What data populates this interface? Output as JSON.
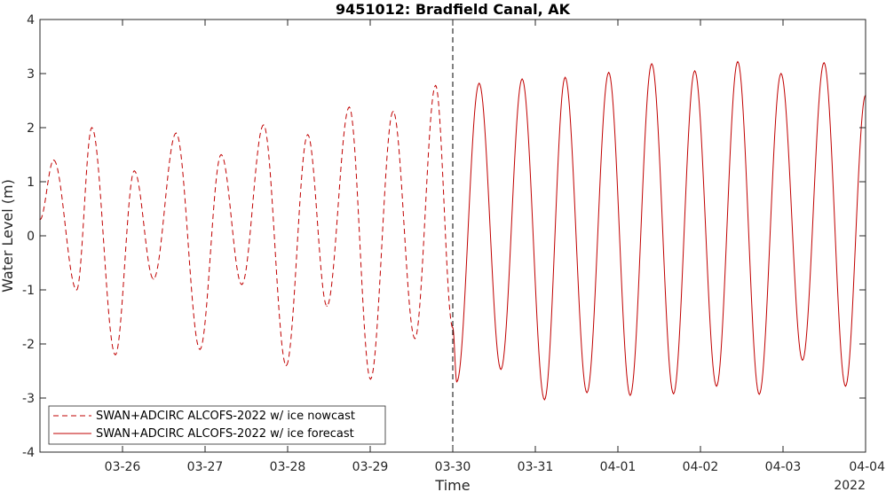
{
  "chart_data": {
    "type": "line",
    "title": "9451012: Bradfield Canal, AK",
    "xlabel": "Time",
    "ylabel": "Water Level (m)",
    "x_unit": "date (2022)",
    "xlim": [
      "2022-03-25 00:00",
      "2022-04-04 00:00"
    ],
    "ylim": [
      -4,
      4
    ],
    "yticks": [
      -4,
      -3,
      -2,
      -1,
      0,
      1,
      2,
      3,
      4
    ],
    "xticks": [
      {
        "date": "2022-03-26",
        "label": "03-26"
      },
      {
        "date": "2022-03-27",
        "label": "03-27"
      },
      {
        "date": "2022-03-28",
        "label": "03-28"
      },
      {
        "date": "2022-03-29",
        "label": "03-29"
      },
      {
        "date": "2022-03-30",
        "label": "03-30"
      },
      {
        "date": "2022-03-31",
        "label": "03-31"
      },
      {
        "date": "2022-04-01",
        "label": "04-01"
      },
      {
        "date": "2022-04-02",
        "label": "04-02"
      },
      {
        "date": "2022-04-03",
        "label": "04-03"
      },
      {
        "date": "2022-04-04",
        "label": "04-04"
      }
    ],
    "year_label": "2022",
    "grid": false,
    "legend_position": "bottom-left",
    "nowcast_forecast_boundary": "2022-03-30 00:00",
    "series": [
      {
        "name": "SWAN+ADCIRC ALCOFS-2022 w/ ice nowcast",
        "style": "dashed",
        "color": "#c00000",
        "points": [
          [
            "2022-03-25 00:00",
            0.3
          ],
          [
            "2022-03-25 04:00",
            1.4
          ],
          [
            "2022-03-25 10:40",
            -1.0
          ],
          [
            "2022-03-25 15:05",
            2.0
          ],
          [
            "2022-03-25 21:55",
            -2.2
          ],
          [
            "2022-03-26 03:25",
            1.2
          ],
          [
            "2022-03-26 09:00",
            -0.8
          ],
          [
            "2022-03-26 15:35",
            1.9
          ],
          [
            "2022-03-26 22:30",
            -2.1
          ],
          [
            "2022-03-27 04:40",
            1.5
          ],
          [
            "2022-03-27 10:40",
            -0.9
          ],
          [
            "2022-03-27 17:00",
            2.05
          ],
          [
            "2022-03-27 23:35",
            -2.4
          ],
          [
            "2022-03-28 05:50",
            1.87
          ],
          [
            "2022-03-28 11:25",
            -1.3
          ],
          [
            "2022-03-28 17:55",
            2.38
          ],
          [
            "2022-03-29 00:05",
            -2.65
          ],
          [
            "2022-03-29 06:40",
            2.3
          ],
          [
            "2022-03-29 13:00",
            -1.9
          ],
          [
            "2022-03-29 19:00",
            2.78
          ],
          [
            "2022-03-30 00:00",
            -1.7
          ]
        ]
      },
      {
        "name": "SWAN+ADCIRC ALCOFS-2022 w/ ice forecast",
        "style": "solid",
        "color": "#c00000",
        "points": [
          [
            "2022-03-30 00:00",
            -1.7
          ],
          [
            "2022-03-30 01:10",
            -2.7
          ],
          [
            "2022-03-30 07:40",
            2.82
          ],
          [
            "2022-03-30 14:00",
            -2.47
          ],
          [
            "2022-03-30 20:10",
            2.9
          ],
          [
            "2022-03-31 02:40",
            -3.03
          ],
          [
            "2022-03-31 08:40",
            2.93
          ],
          [
            "2022-03-31 15:00",
            -2.9
          ],
          [
            "2022-03-31 21:20",
            3.02
          ],
          [
            "2022-04-01 03:35",
            -2.95
          ],
          [
            "2022-04-01 09:50",
            3.18
          ],
          [
            "2022-04-01 16:10",
            -2.92
          ],
          [
            "2022-04-01 22:20",
            3.05
          ],
          [
            "2022-04-02 04:40",
            -2.78
          ],
          [
            "2022-04-02 10:50",
            3.22
          ],
          [
            "2022-04-02 17:05",
            -2.93
          ],
          [
            "2022-04-02 23:25",
            3.0
          ],
          [
            "2022-04-03 05:40",
            -2.3
          ],
          [
            "2022-04-03 11:55",
            3.2
          ],
          [
            "2022-04-03 18:10",
            -2.78
          ],
          [
            "2022-04-04 00:00",
            2.6
          ]
        ]
      }
    ]
  }
}
